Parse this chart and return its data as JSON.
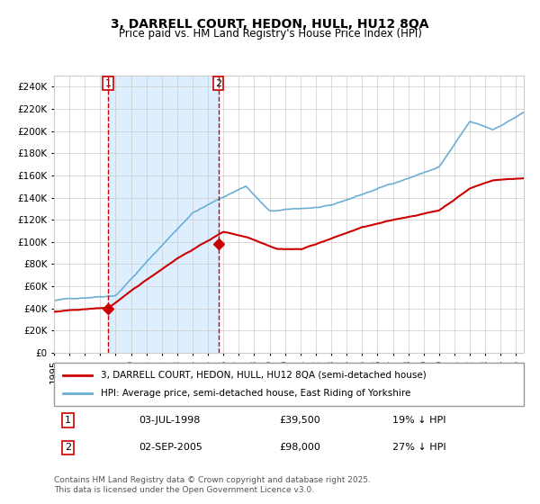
{
  "title": "3, DARRELL COURT, HEDON, HULL, HU12 8QA",
  "subtitle": "Price paid vs. HM Land Registry's House Price Index (HPI)",
  "legend_line1": "3, DARRELL COURT, HEDON, HULL, HU12 8QA (semi-detached house)",
  "legend_line2": "HPI: Average price, semi-detached house, East Riding of Yorkshire",
  "sale1_date": "03-JUL-1998",
  "sale1_price": "£39,500",
  "sale1_hpi": "19% ↓ HPI",
  "sale2_date": "02-SEP-2005",
  "sale2_price": "£98,000",
  "sale2_hpi": "27% ↓ HPI",
  "footer": "Contains HM Land Registry data © Crown copyright and database right 2025.\nThis data is licensed under the Open Government Licence v3.0.",
  "sale1_year": 1998.5,
  "sale2_year": 2005.67,
  "hpi_color": "#6baed6",
  "price_color": "#cc0000",
  "shade_color": "#ddeeff",
  "vline_color": "#cc0000",
  "ylim": [
    0,
    250000
  ],
  "yticks": [
    0,
    20000,
    40000,
    60000,
    80000,
    100000,
    120000,
    140000,
    160000,
    180000,
    200000,
    220000,
    240000
  ],
  "xlim_start": 1995.0,
  "xlim_end": 2025.5
}
